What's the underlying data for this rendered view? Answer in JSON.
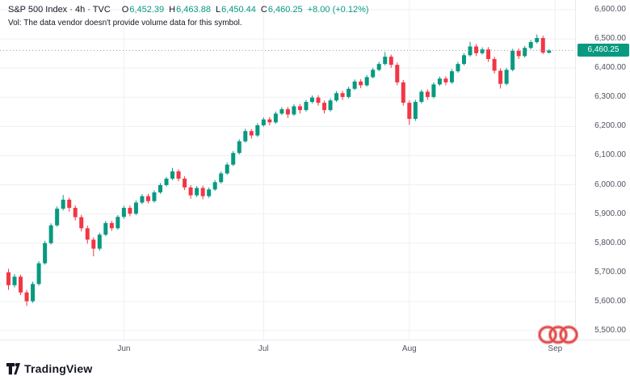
{
  "header": {
    "symbol_title": "S&P 500 Index · 4h · TVC",
    "ohlc": {
      "o_label": "O",
      "o": "6,452.39",
      "h_label": "H",
      "h": "6,463.88",
      "l_label": "L",
      "l": "6,450.44",
      "c_label": "C",
      "c": "6,460.25",
      "change": "+8.00 (+0.12%)"
    },
    "vol_note": "Vol: The data vendor doesn't provide volume data for this symbol."
  },
  "price_axis": {
    "last_price_badge": "6,460.25",
    "badge_color": "#089981"
  },
  "footer": {
    "brand": "TradingView"
  },
  "colors": {
    "up": "#089981",
    "down": "#F23645",
    "grid": "#EEF0F3",
    "axis_text": "#50535E",
    "last_price_line": "#9598A1",
    "background": "#FFFFFF",
    "annotation_red": "#E04444"
  },
  "chart_data": {
    "type": "candlestick",
    "title": "S&P 500 Index · 4h · TVC",
    "symbol": "S&P 500 Index",
    "interval": "4h",
    "exchange": "TVC",
    "ylabel": "Price",
    "ylim": [
      5500,
      6600
    ],
    "grid": true,
    "last_price": 6460.25,
    "last_bar": {
      "open": 6452.39,
      "high": 6463.88,
      "low": 6450.44,
      "close": 6460.25,
      "change": "+8.00 (+0.12%)"
    },
    "y_ticks": [
      {
        "label": "6,600.00",
        "value": 6600
      },
      {
        "label": "6,500.00",
        "value": 6500
      },
      {
        "label": "6,400.00",
        "value": 6400
      },
      {
        "label": "6,300.00",
        "value": 6300
      },
      {
        "label": "6,200.00",
        "value": 6200
      },
      {
        "label": "6,100.00",
        "value": 6100
      },
      {
        "label": "6,000.00",
        "value": 6000
      },
      {
        "label": "5,900.00",
        "value": 5900
      },
      {
        "label": "5,800.00",
        "value": 5800
      },
      {
        "label": "5,700.00",
        "value": 5700
      },
      {
        "label": "5,600.00",
        "value": 5600
      },
      {
        "label": "5,500.00",
        "value": 5500
      }
    ],
    "x_ticks": [
      {
        "label": "Jun",
        "index": 19
      },
      {
        "label": "Jul",
        "index": 42
      },
      {
        "label": "Aug",
        "index": 66
      },
      {
        "label": "Sep",
        "index": 90
      }
    ],
    "ohlc": [
      [
        5700,
        5712,
        5640,
        5656
      ],
      [
        5656,
        5694,
        5648,
        5685
      ],
      [
        5685,
        5692,
        5622,
        5631
      ],
      [
        5631,
        5640,
        5585,
        5601
      ],
      [
        5601,
        5668,
        5595,
        5660
      ],
      [
        5660,
        5738,
        5655,
        5731
      ],
      [
        5731,
        5808,
        5726,
        5800
      ],
      [
        5800,
        5868,
        5795,
        5861
      ],
      [
        5861,
        5926,
        5856,
        5918
      ],
      [
        5918,
        5965,
        5912,
        5949
      ],
      [
        5949,
        5956,
        5908,
        5921
      ],
      [
        5921,
        5930,
        5878,
        5889
      ],
      [
        5889,
        5897,
        5840,
        5851
      ],
      [
        5851,
        5860,
        5798,
        5812
      ],
      [
        5812,
        5820,
        5755,
        5781
      ],
      [
        5781,
        5836,
        5774,
        5829
      ],
      [
        5829,
        5876,
        5824,
        5869
      ],
      [
        5869,
        5877,
        5842,
        5851
      ],
      [
        5851,
        5896,
        5846,
        5890
      ],
      [
        5890,
        5928,
        5884,
        5921
      ],
      [
        5921,
        5929,
        5892,
        5901
      ],
      [
        5901,
        5946,
        5896,
        5939
      ],
      [
        5939,
        5968,
        5934,
        5961
      ],
      [
        5961,
        5969,
        5936,
        5944
      ],
      [
        5944,
        5981,
        5939,
        5974
      ],
      [
        5974,
        6006,
        5969,
        5999
      ],
      [
        5999,
        6027,
        5994,
        6021
      ],
      [
        6021,
        6058,
        6016,
        6046
      ],
      [
        6046,
        6053,
        6012,
        6021
      ],
      [
        6021,
        6029,
        5982,
        5991
      ],
      [
        5991,
        5999,
        5952,
        5964
      ],
      [
        5964,
        5996,
        5958,
        5989
      ],
      [
        5989,
        5997,
        5950,
        5961
      ],
      [
        5961,
        5991,
        5955,
        5984
      ],
      [
        5984,
        6016,
        5979,
        6009
      ],
      [
        6009,
        6046,
        6004,
        6039
      ],
      [
        6039,
        6076,
        6034,
        6069
      ],
      [
        6069,
        6116,
        6064,
        6109
      ],
      [
        6109,
        6156,
        6104,
        6149
      ],
      [
        6149,
        6192,
        6144,
        6184
      ],
      [
        6184,
        6191,
        6158,
        6169
      ],
      [
        6169,
        6211,
        6164,
        6204
      ],
      [
        6204,
        6231,
        6199,
        6224
      ],
      [
        6224,
        6232,
        6204,
        6214
      ],
      [
        6214,
        6251,
        6209,
        6244
      ],
      [
        6244,
        6266,
        6239,
        6259
      ],
      [
        6259,
        6267,
        6229,
        6241
      ],
      [
        6241,
        6276,
        6236,
        6269
      ],
      [
        6269,
        6277,
        6244,
        6256
      ],
      [
        6256,
        6291,
        6251,
        6284
      ],
      [
        6284,
        6306,
        6279,
        6299
      ],
      [
        6299,
        6307,
        6271,
        6281
      ],
      [
        6281,
        6289,
        6244,
        6256
      ],
      [
        6256,
        6296,
        6251,
        6289
      ],
      [
        6289,
        6321,
        6284,
        6314
      ],
      [
        6314,
        6322,
        6291,
        6301
      ],
      [
        6301,
        6336,
        6296,
        6329
      ],
      [
        6329,
        6361,
        6324,
        6354
      ],
      [
        6354,
        6362,
        6331,
        6341
      ],
      [
        6341,
        6376,
        6336,
        6369
      ],
      [
        6369,
        6401,
        6364,
        6394
      ],
      [
        6394,
        6421,
        6389,
        6414
      ],
      [
        6414,
        6455,
        6409,
        6439
      ],
      [
        6439,
        6446,
        6401,
        6411
      ],
      [
        6411,
        6419,
        6341,
        6351
      ],
      [
        6351,
        6359,
        6271,
        6281
      ],
      [
        6281,
        6289,
        6205,
        6226
      ],
      [
        6226,
        6291,
        6219,
        6284
      ],
      [
        6284,
        6326,
        6279,
        6319
      ],
      [
        6319,
        6327,
        6291,
        6301
      ],
      [
        6301,
        6351,
        6296,
        6344
      ],
      [
        6344,
        6371,
        6339,
        6364
      ],
      [
        6364,
        6372,
        6341,
        6351
      ],
      [
        6351,
        6396,
        6346,
        6389
      ],
      [
        6389,
        6421,
        6384,
        6414
      ],
      [
        6414,
        6451,
        6409,
        6444
      ],
      [
        6444,
        6490,
        6439,
        6474
      ],
      [
        6474,
        6482,
        6441,
        6451
      ],
      [
        6451,
        6471,
        6446,
        6464
      ],
      [
        6464,
        6472,
        6421,
        6431
      ],
      [
        6431,
        6439,
        6381,
        6391
      ],
      [
        6391,
        6399,
        6330,
        6346
      ],
      [
        6346,
        6401,
        6341,
        6394
      ],
      [
        6394,
        6466,
        6389,
        6459
      ],
      [
        6459,
        6467,
        6431,
        6441
      ],
      [
        6441,
        6476,
        6436,
        6469
      ],
      [
        6469,
        6496,
        6464,
        6489
      ],
      [
        6489,
        6515,
        6484,
        6503
      ],
      [
        6503,
        6511,
        6448,
        6453
      ],
      [
        6452.39,
        6463.88,
        6450.44,
        6460.25
      ]
    ]
  }
}
